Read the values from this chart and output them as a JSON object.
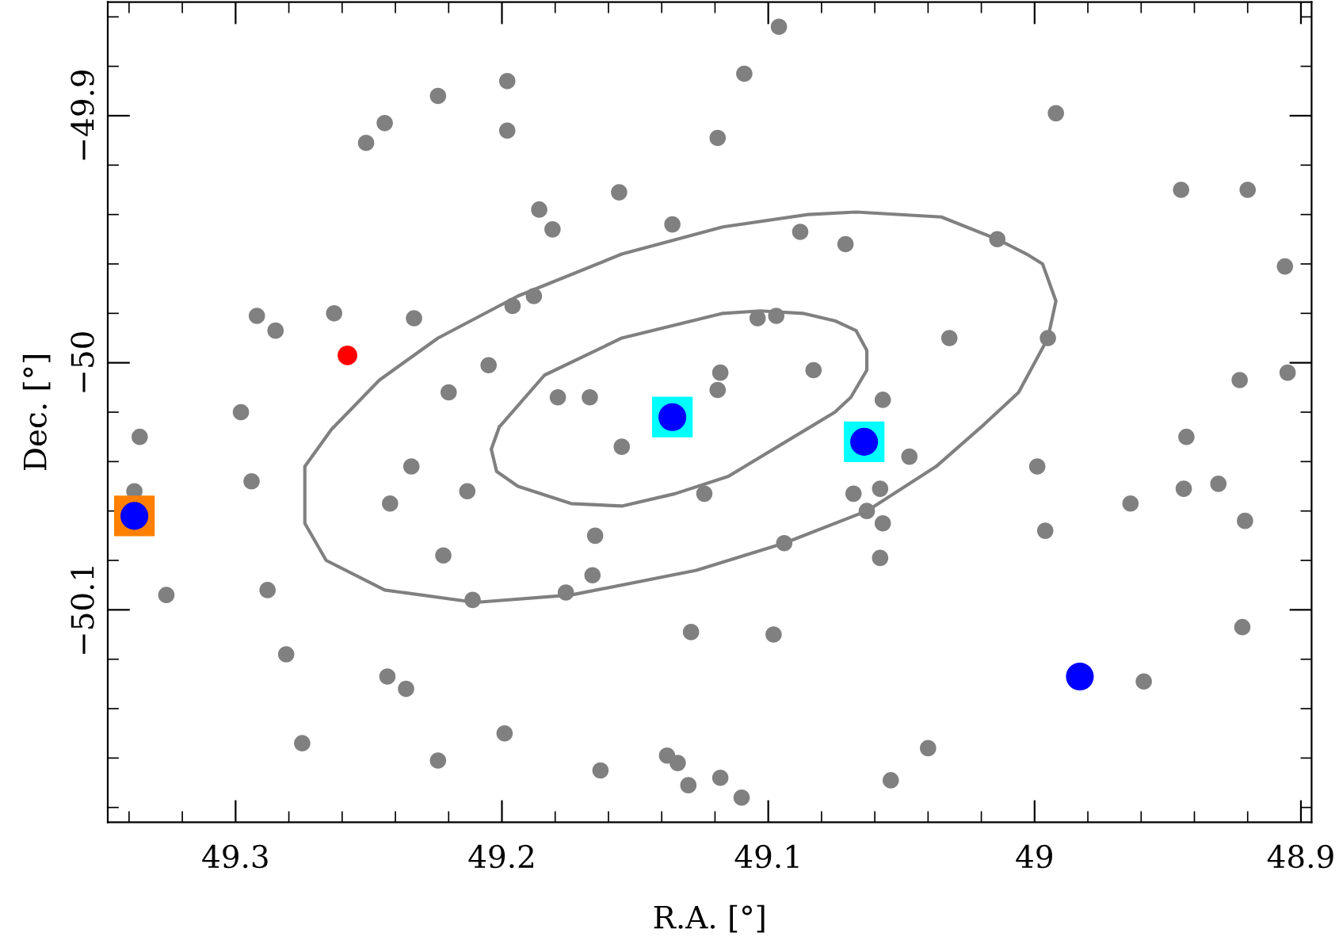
{
  "chart_data": {
    "type": "scatter",
    "xlabel": "R.A. [°]",
    "ylabel": "Dec. [°]",
    "xlim": [
      49.348,
      48.896
    ],
    "ylim": [
      -50.186,
      -49.854
    ],
    "xticks": [
      {
        "value": 49.34,
        "label": null
      },
      {
        "value": 49.32,
        "label": null
      },
      49.3,
      {
        "value": 49.28,
        "label": null
      },
      {
        "value": 49.26,
        "label": null
      },
      {
        "value": 49.24,
        "label": null
      },
      {
        "value": 49.22,
        "label": null
      },
      49.2,
      {
        "value": 49.18,
        "label": null
      },
      {
        "value": 49.16,
        "label": null
      },
      {
        "value": 49.14,
        "label": null
      },
      {
        "value": 49.12,
        "label": null
      },
      49.1,
      {
        "value": 49.08,
        "label": null
      },
      {
        "value": 49.06,
        "label": null
      },
      {
        "value": 49.04,
        "label": null
      },
      {
        "value": 49.02,
        "label": null
      },
      49,
      {
        "value": 48.98,
        "label": null
      },
      {
        "value": 48.96,
        "label": null
      },
      {
        "value": 48.94,
        "label": null
      },
      {
        "value": 48.92,
        "label": null
      },
      48.9
    ],
    "yticks": [
      {
        "value": -50.18,
        "label": null
      },
      {
        "value": -50.16,
        "label": null
      },
      {
        "value": -50.14,
        "label": null
      },
      {
        "value": -50.12,
        "label": null
      },
      {
        "value": -50.1,
        "label": "−50.1"
      },
      {
        "value": -50.08,
        "label": null
      },
      {
        "value": -50.06,
        "label": null
      },
      {
        "value": -50.04,
        "label": null
      },
      {
        "value": -50.02,
        "label": null
      },
      {
        "value": -50,
        "label": "−50"
      },
      {
        "value": -49.98,
        "label": null
      },
      {
        "value": -49.96,
        "label": null
      },
      {
        "value": -49.94,
        "label": null
      },
      {
        "value": -49.92,
        "label": null
      },
      {
        "value": -49.9,
        "label": "−49.9"
      },
      {
        "value": -49.88,
        "label": null
      },
      {
        "value": -49.86,
        "label": null
      }
    ],
    "grid": false,
    "legend": false,
    "series": [
      {
        "type": "scatter",
        "color": "#808080",
        "marker": "circle",
        "x": [
          49.198,
          49.224,
          49.244,
          49.251,
          49.198,
          49.119,
          49.156,
          49.186,
          49.181,
          49.136,
          49.292,
          49.285,
          49.263,
          49.233,
          49.196,
          49.188,
          49.205,
          49.22,
          49.179,
          49.167,
          49.118,
          49.119,
          49.298,
          49.096,
          49.109,
          48.992,
          48.945,
          48.92,
          48.906,
          49.088,
          49.071,
          49.014,
          49.032,
          48.995,
          49.104,
          49.097,
          49.083,
          49.057,
          48.923,
          48.905,
          49.336,
          49.338,
          49.294,
          49.234,
          49.242,
          49.213,
          49.155,
          49.124,
          49.222,
          49.165,
          49.166,
          49.176,
          49.211,
          49.326,
          49.288,
          49.129,
          49.281,
          49.243,
          49.236,
          49.275,
          49.199,
          49.224,
          49.163,
          49.138,
          49.134,
          49.13,
          49.118,
          49.047,
          49.068,
          49.058,
          49.063,
          49.057,
          49.094,
          49.058,
          48.999,
          48.996,
          48.943,
          48.964,
          48.944,
          48.931,
          48.921,
          48.922,
          49.098,
          48.959,
          49.04,
          49.11,
          49.054
        ],
        "values": [
          -49.886,
          -49.892,
          -49.903,
          -49.911,
          -49.906,
          -49.909,
          -49.931,
          -49.938,
          -49.946,
          -49.944,
          -49.981,
          -49.987,
          -49.98,
          -49.982,
          -49.977,
          -49.973,
          -50.001,
          -50.012,
          -50.014,
          -50.014,
          -50.004,
          -50.011,
          -50.02,
          -49.864,
          -49.883,
          -49.899,
          -49.93,
          -49.93,
          -49.961,
          -49.947,
          -49.952,
          -49.95,
          -49.99,
          -49.99,
          -49.982,
          -49.981,
          -50.003,
          -50.015,
          -50.007,
          -50.004,
          -50.03,
          -50.052,
          -50.048,
          -50.042,
          -50.057,
          -50.052,
          -50.034,
          -50.053,
          -50.078,
          -50.07,
          -50.086,
          -50.093,
          -50.096,
          -50.094,
          -50.092,
          -50.109,
          -50.118,
          -50.127,
          -50.132,
          -50.154,
          -50.15,
          -50.161,
          -50.165,
          -50.159,
          -50.162,
          -50.171,
          -50.168,
          -50.038,
          -50.053,
          -50.051,
          -50.06,
          -50.065,
          -50.073,
          -50.079,
          -50.042,
          -50.068,
          -50.03,
          -50.057,
          -50.051,
          -50.049,
          -50.064,
          -50.107,
          -50.11,
          -50.129,
          -50.156,
          -50.176,
          -50.169
        ]
      },
      {
        "type": "scatter",
        "color": "#00ffff",
        "marker": "square",
        "x": [
          49.136,
          49.064
        ],
        "values": [
          -50.022,
          -50.032
        ]
      },
      {
        "type": "scatter",
        "color": "#ff8000",
        "marker": "square",
        "x": [
          49.338
        ],
        "values": [
          -50.062
        ]
      },
      {
        "color": "#ff0000",
        "type": "scatter",
        "marker": "circle",
        "x": [
          49.258
        ],
        "values": [
          -49.997
        ]
      },
      {
        "color": "#0000ff",
        "marker": "circle",
        "x": [
          49.136,
          49.064,
          49.338,
          48.983
        ],
        "values": [
          -50.022,
          -50.032,
          -50.062,
          -50.127
        ]
      }
    ]
  }
}
